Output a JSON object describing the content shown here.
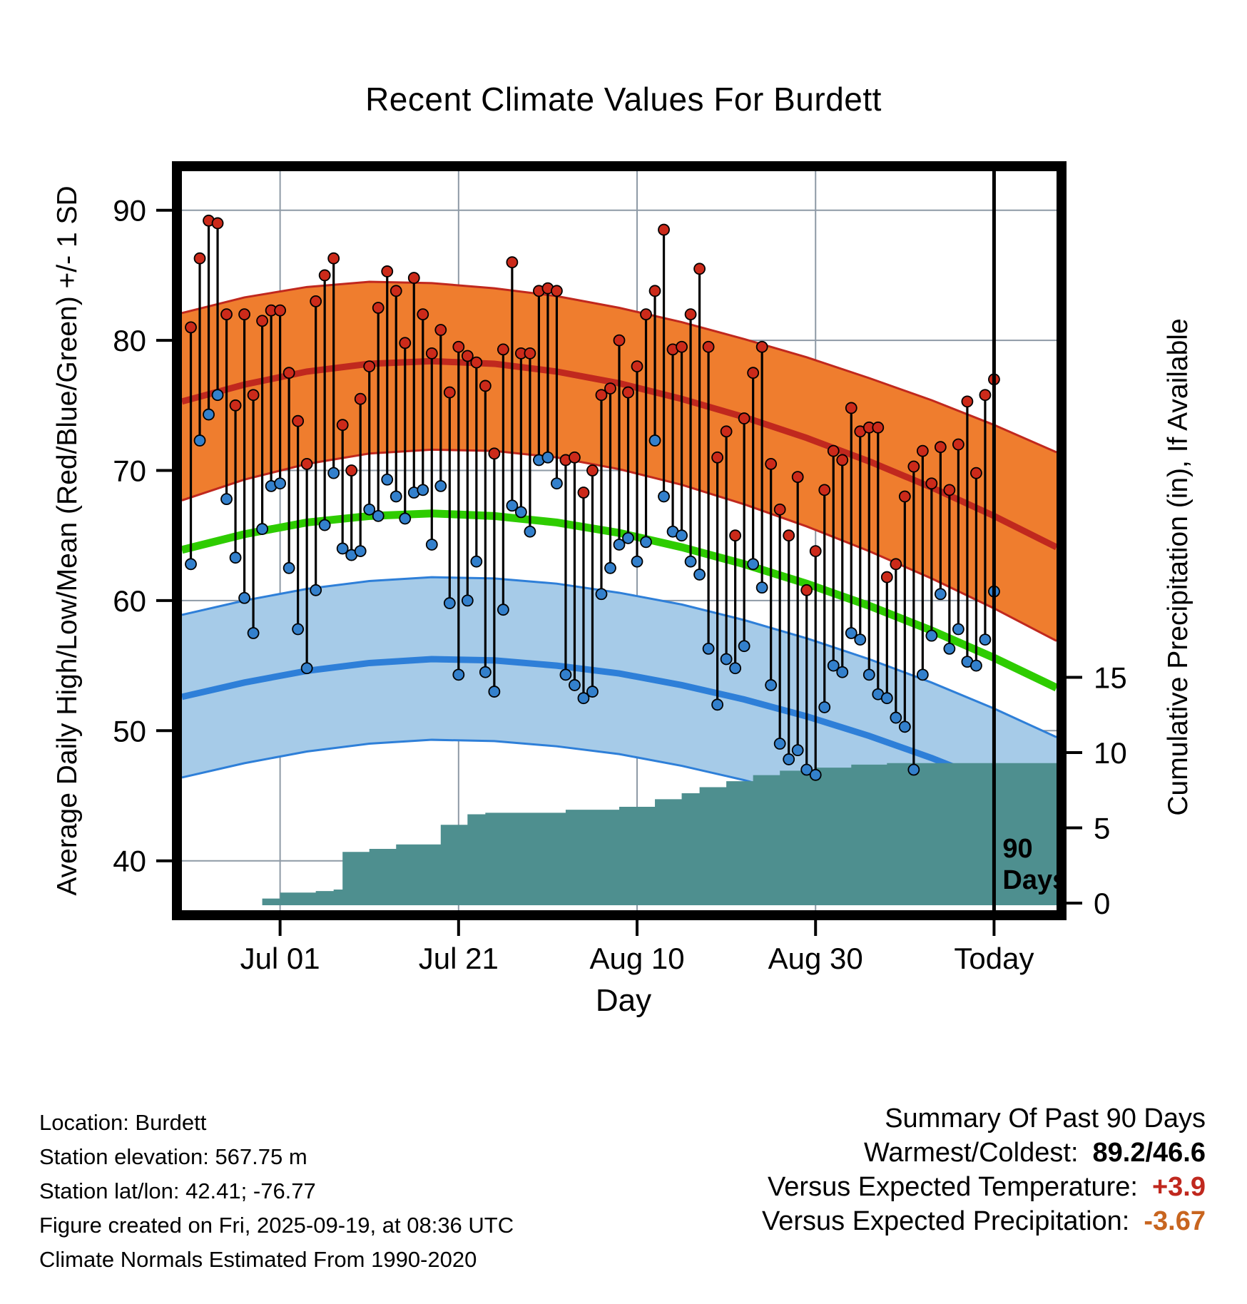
{
  "title": "Recent Climate Values For Burdett",
  "axes": {
    "left_label": "Average Daily High/Low/Mean (Red/Blue/Green) +/- 1 SD",
    "right_label": "Cumulative Precipitation (in), If Available",
    "x_label": "Day"
  },
  "footer": {
    "lines": [
      "Location: Burdett",
      "Station elevation: 567.75 m",
      "Station lat/lon: 42.41; -76.77",
      "Figure created on Fri, 2025-09-19, at 08:36 UTC",
      "Climate Normals Estimated From 1990-2020"
    ]
  },
  "summary": {
    "title": "Summary Of Past 90 Days",
    "rows": [
      {
        "label": "Warmest/Coldest:",
        "value": "89.2/46.6",
        "color": "#000000"
      },
      {
        "label": "Versus Expected Temperature:",
        "value": "+3.9",
        "color": "#c0281e"
      },
      {
        "label": "Versus Expected Precipitation:",
        "value": "-3.67",
        "color": "#c8651f"
      }
    ]
  },
  "chart_data": {
    "type": "line",
    "title": "Recent Climate Values For Burdett",
    "xlabel": "Day",
    "ylabel_left": "Average Daily High/Low/Mean (Red/Blue/Green) +/- 1 SD",
    "ylabel_right": "Cumulative Precipitation (in), If Available",
    "x_axis": {
      "tick_labels": [
        "Jul 01",
        "Jul 21",
        "Aug 10",
        "Aug 30",
        "Today"
      ],
      "tick_days": [
        10,
        30,
        50,
        70,
        90
      ]
    },
    "left_axis": {
      "ticks": [
        40,
        50,
        60,
        70,
        80,
        90
      ],
      "range": [
        36.2,
        93.0
      ]
    },
    "right_axis": {
      "ticks": [
        0,
        5,
        10,
        15
      ],
      "unit": "in"
    },
    "today_marker": {
      "day": 90,
      "label_line1": "90",
      "label_line2": "Days"
    },
    "climatology": {
      "days": [
        -1,
        6,
        13,
        20,
        27,
        34,
        41,
        48,
        55,
        62,
        69,
        76,
        83,
        90,
        97
      ],
      "high_upper": [
        82.1,
        83.3,
        84.1,
        84.5,
        84.4,
        84.0,
        83.4,
        82.5,
        81.4,
        80.1,
        78.7,
        77.1,
        75.4,
        73.5,
        71.4
      ],
      "high_mean": [
        75.3,
        76.6,
        77.6,
        78.2,
        78.4,
        78.2,
        77.6,
        76.7,
        75.5,
        74.1,
        72.5,
        70.7,
        68.7,
        66.5,
        64.1
      ],
      "high_lower": [
        67.7,
        69.3,
        70.5,
        71.3,
        71.6,
        71.5,
        71.0,
        70.1,
        68.9,
        67.4,
        65.7,
        63.8,
        61.7,
        59.4,
        56.9
      ],
      "mean": [
        63.9,
        65.1,
        66.0,
        66.5,
        66.7,
        66.5,
        66.0,
        65.2,
        64.1,
        62.8,
        61.3,
        59.6,
        57.7,
        55.6,
        53.3
      ],
      "low_upper": [
        58.9,
        60.0,
        60.9,
        61.5,
        61.8,
        61.7,
        61.3,
        60.6,
        59.7,
        58.5,
        57.1,
        55.5,
        53.7,
        51.7,
        49.5
      ],
      "low_mean": [
        52.6,
        53.7,
        54.6,
        55.2,
        55.5,
        55.4,
        55.0,
        54.4,
        53.5,
        52.4,
        51.1,
        49.6,
        47.9,
        46.0,
        43.9
      ],
      "low_lower": [
        46.4,
        47.5,
        48.4,
        49.0,
        49.3,
        49.2,
        48.8,
        48.2,
        47.3,
        46.2,
        44.9,
        43.4,
        41.7,
        39.8,
        37.7
      ]
    },
    "daily": {
      "start_day": 0,
      "high": [
        81.0,
        86.3,
        89.2,
        89.0,
        82.0,
        75.0,
        82.0,
        75.8,
        81.5,
        82.3,
        82.3,
        77.5,
        73.8,
        70.5,
        83.0,
        85.0,
        86.3,
        73.5,
        70.0,
        75.5,
        78.0,
        82.5,
        85.3,
        83.8,
        79.8,
        84.8,
        82.0,
        79.0,
        80.8,
        76.0,
        79.5,
        78.8,
        78.3,
        76.5,
        71.3,
        79.3,
        86.0,
        79.0,
        79.0,
        83.8,
        84.0,
        83.8,
        70.8,
        71.0,
        68.3,
        70.0,
        75.8,
        76.3,
        80.0,
        76.0,
        78.0,
        82.0,
        83.8,
        88.5,
        79.3,
        79.5,
        82.0,
        85.5,
        79.5,
        71.0,
        73.0,
        65.0,
        74.0,
        77.5,
        79.5,
        70.5,
        67.0,
        65.0,
        69.5,
        60.8,
        63.8,
        68.5,
        71.5,
        70.8,
        74.8,
        73.0,
        73.3,
        73.3,
        61.8,
        62.8,
        68.0,
        70.3,
        71.5,
        69.0,
        71.8,
        68.5,
        72.0,
        75.3,
        69.8,
        75.8,
        77.0
      ],
      "low": [
        62.8,
        72.3,
        74.3,
        75.8,
        67.8,
        63.3,
        60.2,
        57.5,
        65.5,
        68.8,
        69.0,
        62.5,
        57.8,
        54.8,
        60.8,
        65.8,
        69.8,
        64.0,
        63.5,
        63.8,
        67.0,
        66.5,
        69.3,
        68.0,
        66.3,
        68.3,
        68.5,
        64.3,
        68.8,
        59.8,
        54.3,
        60.0,
        63.0,
        54.5,
        53.0,
        59.3,
        67.3,
        66.8,
        65.3,
        70.8,
        71.0,
        69.0,
        54.3,
        53.5,
        52.5,
        53.0,
        60.5,
        62.5,
        64.3,
        64.8,
        63.0,
        64.5,
        72.3,
        68.0,
        65.3,
        65.0,
        63.0,
        62.0,
        56.3,
        52.0,
        55.5,
        54.8,
        56.5,
        62.8,
        61.0,
        53.5,
        49.0,
        47.8,
        48.5,
        47.0,
        46.6,
        51.8,
        55.0,
        54.5,
        57.5,
        57.0,
        54.3,
        52.8,
        52.5,
        51.0,
        50.3,
        47.0,
        54.3,
        57.3,
        60.5,
        56.3,
        57.8,
        55.3,
        55.0,
        57.0,
        60.7
      ]
    },
    "precip_cumulative": {
      "steps": [
        {
          "day": 8,
          "value": 0.3
        },
        {
          "day": 10,
          "value": 0.7
        },
        {
          "day": 14,
          "value": 0.8
        },
        {
          "day": 16,
          "value": 0.9
        },
        {
          "day": 17,
          "value": 3.4
        },
        {
          "day": 20,
          "value": 3.6
        },
        {
          "day": 23,
          "value": 3.9
        },
        {
          "day": 28,
          "value": 5.2
        },
        {
          "day": 31,
          "value": 5.9
        },
        {
          "day": 33,
          "value": 6.0
        },
        {
          "day": 42,
          "value": 6.2
        },
        {
          "day": 48,
          "value": 6.4
        },
        {
          "day": 52,
          "value": 6.9
        },
        {
          "day": 55,
          "value": 7.3
        },
        {
          "day": 57,
          "value": 7.7
        },
        {
          "day": 60,
          "value": 8.1
        },
        {
          "day": 63,
          "value": 8.5
        },
        {
          "day": 66,
          "value": 8.8
        },
        {
          "day": 70,
          "value": 9.0
        },
        {
          "day": 74,
          "value": 9.2
        },
        {
          "day": 78,
          "value": 9.3
        },
        {
          "day": 97,
          "value": 9.3
        }
      ]
    },
    "colors": {
      "high_band": "#ef7d2e",
      "high_line": "#c0281e",
      "low_band": "#a6cbe8",
      "low_line": "#2e7fd8",
      "mean_line": "#2ecc00",
      "precip": "#4e8f8f",
      "dot_high": "#cc2a1a",
      "dot_low": "#3380cc",
      "daily_line": "#000000",
      "grid": "#8e9aa6",
      "today_line": "#000000",
      "today_text": "#111111"
    }
  }
}
